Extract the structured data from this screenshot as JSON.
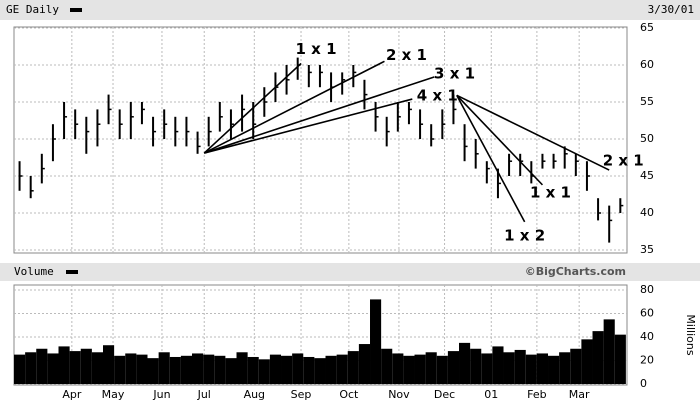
{
  "chart_data": [
    {
      "type": "ohlc",
      "title": "GE Daily",
      "date": "3/30/01",
      "source": "©BigCharts.com",
      "x": [
        0,
        1,
        2,
        3,
        4,
        5,
        6,
        7,
        8,
        9,
        10,
        11,
        12,
        13,
        14,
        15,
        16,
        17,
        18,
        19,
        20,
        21,
        22,
        23,
        24,
        25,
        26,
        27,
        28,
        29,
        30,
        31,
        32,
        33,
        34,
        35,
        36,
        37,
        38,
        39,
        40,
        41,
        42,
        43,
        44,
        45,
        46,
        47,
        48,
        49,
        50,
        51,
        52,
        53,
        54
      ],
      "high": [
        47,
        45,
        48,
        52,
        55,
        54,
        53,
        54,
        56,
        54,
        55,
        55,
        53,
        54,
        53,
        53,
        51,
        53,
        55,
        54,
        56,
        55,
        57,
        59,
        60,
        61,
        60,
        60,
        59,
        59,
        60,
        58,
        55,
        53,
        55,
        55,
        54,
        52,
        54,
        56,
        52,
        50,
        47,
        46,
        48,
        48,
        47,
        48,
        48,
        49,
        48,
        47,
        42,
        41,
        42
      ],
      "low": [
        43,
        42,
        44,
        47,
        50,
        50,
        48,
        49,
        52,
        50,
        50,
        52,
        49,
        50,
        49,
        49,
        48,
        49,
        51,
        50,
        51,
        50,
        53,
        55,
        56,
        58,
        57,
        57,
        55,
        56,
        57,
        54,
        51,
        49,
        51,
        52,
        50,
        49,
        50,
        52,
        47,
        46,
        44,
        42,
        45,
        45,
        44,
        46,
        46,
        46,
        45,
        43,
        39,
        36,
        40
      ],
      "close": [
        45,
        43,
        46,
        50,
        53,
        52,
        51,
        52,
        54,
        52,
        53,
        54,
        51,
        52,
        51,
        51,
        49,
        51,
        53,
        52,
        54,
        52,
        55,
        57,
        58,
        60,
        59,
        59,
        57,
        58,
        59,
        56,
        53,
        51,
        53,
        54,
        52,
        50,
        52,
        54,
        49,
        48,
        46,
        44,
        47,
        47,
        45,
        47,
        47,
        48,
        47,
        45,
        40,
        39,
        41
      ],
      "xlim": [
        -0.5,
        54.6
      ],
      "ylim": [
        35,
        65
      ],
      "yticks": [
        35,
        40,
        45,
        50,
        55,
        60,
        65
      ],
      "xticks": [
        {
          "value": 4.7,
          "label": "Apr"
        },
        {
          "value": 8.4,
          "label": "May"
        },
        {
          "value": 12.8,
          "label": "Jun"
        },
        {
          "value": 16.6,
          "label": "Jul"
        },
        {
          "value": 21.1,
          "label": "Aug"
        },
        {
          "value": 25.3,
          "label": "Sep"
        },
        {
          "value": 29.6,
          "label": "Oct"
        },
        {
          "value": 34.1,
          "label": "Nov"
        },
        {
          "value": 38.2,
          "label": "Dec"
        },
        {
          "value": 42.4,
          "label": "01"
        },
        {
          "value": 46.5,
          "label": "Feb"
        },
        {
          "value": 50.3,
          "label": "Mar"
        }
      ],
      "color": "#000000",
      "grid": true,
      "fan_lines": [
        {
          "label": "1 x 1",
          "x": [
            16.6,
            25.3
          ],
          "y": [
            48.1,
            60.2
          ]
        },
        {
          "label": "2 x 1",
          "x": [
            16.6,
            32.8
          ],
          "y": [
            48.1,
            60.5
          ]
        },
        {
          "label": "3 x 1",
          "x": [
            16.6,
            37.3
          ],
          "y": [
            48.1,
            58.4
          ]
        },
        {
          "label": "4 x 1",
          "x": [
            16.6,
            35.3
          ],
          "y": [
            48.1,
            55.4
          ]
        },
        {
          "label": "1 x 2",
          "x": [
            39.3,
            45.4
          ],
          "y": [
            55.9,
            38.8
          ]
        },
        {
          "label": "1 x 1",
          "x": [
            39.3,
            47.0
          ],
          "y": [
            55.9,
            43.8
          ]
        },
        {
          "label": "2 x 1",
          "x": [
            39.3,
            53.0
          ],
          "y": [
            55.9,
            45.8
          ]
        }
      ]
    },
    {
      "type": "volume",
      "title": "Volume",
      "ylabel": "Millions",
      "values": [
        25,
        27,
        30,
        26,
        32,
        28,
        30,
        27,
        33,
        24,
        26,
        25,
        22,
        27,
        23,
        24,
        26,
        25,
        24,
        22,
        27,
        23,
        21,
        25,
        24,
        26,
        23,
        22,
        24,
        25,
        28,
        34,
        72,
        30,
        26,
        24,
        25,
        27,
        24,
        28,
        35,
        30,
        26,
        32,
        27,
        29,
        25,
        26,
        24,
        27,
        30,
        38,
        45,
        55,
        42
      ],
      "ylim": [
        0,
        80
      ],
      "yticks": [
        0,
        20,
        40,
        60,
        80
      ],
      "color": "#000000",
      "grid": true
    }
  ]
}
